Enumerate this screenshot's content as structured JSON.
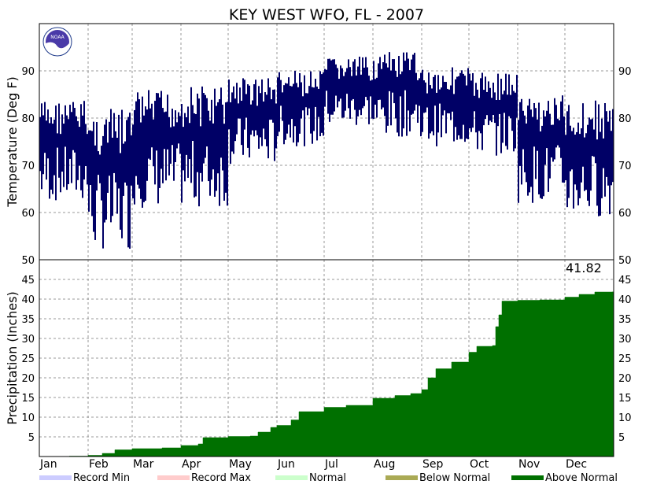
{
  "chart_data": {
    "title": "KEY WEST WFO, FL - 2007",
    "temperature": {
      "type": "bar",
      "ylabel": "Temperature (Deg F)",
      "ylim": [
        50,
        100
      ],
      "yticks": [
        60,
        70,
        80,
        90
      ],
      "grid": true,
      "series_color": "#000066",
      "monthly_ranges": [
        {
          "month": "Jan",
          "low": 62,
          "high": 84
        },
        {
          "month": "Feb",
          "low": 52,
          "high": 82
        },
        {
          "month": "Mar",
          "low": 61,
          "high": 86
        },
        {
          "month": "Apr",
          "low": 61,
          "high": 87
        },
        {
          "month": "May",
          "low": 70,
          "high": 89
        },
        {
          "month": "Jun",
          "low": 74,
          "high": 90
        },
        {
          "month": "Jul",
          "low": 78,
          "high": 93
        },
        {
          "month": "Aug",
          "low": 76,
          "high": 94
        },
        {
          "month": "Sep",
          "low": 74,
          "high": 91
        },
        {
          "month": "Oct",
          "low": 72,
          "high": 90
        },
        {
          "month": "Nov",
          "low": 62,
          "high": 85
        },
        {
          "month": "Dec",
          "low": 59,
          "high": 84
        }
      ]
    },
    "precipitation": {
      "type": "area",
      "ylabel": "Precipitation (Inches)",
      "ylim": [
        0,
        50
      ],
      "yticks": [
        5,
        10,
        15,
        20,
        25,
        30,
        35,
        40,
        45,
        50
      ],
      "grid": true,
      "total_label": "41.82",
      "fill_color": "#007000",
      "cumulative": [
        {
          "date": "2007-01-01",
          "value": 0.0
        },
        {
          "date": "2007-01-20",
          "value": 0.1
        },
        {
          "date": "2007-02-01",
          "value": 0.3
        },
        {
          "date": "2007-02-10",
          "value": 0.8
        },
        {
          "date": "2007-02-18",
          "value": 1.7
        },
        {
          "date": "2007-03-01",
          "value": 2.0
        },
        {
          "date": "2007-03-20",
          "value": 2.2
        },
        {
          "date": "2007-04-01",
          "value": 2.8
        },
        {
          "date": "2007-04-12",
          "value": 3.2
        },
        {
          "date": "2007-04-15",
          "value": 4.8
        },
        {
          "date": "2007-05-01",
          "value": 5.1
        },
        {
          "date": "2007-05-15",
          "value": 5.2
        },
        {
          "date": "2007-05-20",
          "value": 6.2
        },
        {
          "date": "2007-05-28",
          "value": 7.4
        },
        {
          "date": "2007-06-01",
          "value": 7.9
        },
        {
          "date": "2007-06-10",
          "value": 9.3
        },
        {
          "date": "2007-06-15",
          "value": 11.4
        },
        {
          "date": "2007-07-01",
          "value": 12.5
        },
        {
          "date": "2007-07-15",
          "value": 13.0
        },
        {
          "date": "2007-08-01",
          "value": 14.8
        },
        {
          "date": "2007-08-15",
          "value": 15.5
        },
        {
          "date": "2007-08-25",
          "value": 16.0
        },
        {
          "date": "2007-09-01",
          "value": 17.0
        },
        {
          "date": "2007-09-05",
          "value": 20.0
        },
        {
          "date": "2007-09-10",
          "value": 22.3
        },
        {
          "date": "2007-09-20",
          "value": 24.0
        },
        {
          "date": "2007-10-01",
          "value": 26.5
        },
        {
          "date": "2007-10-06",
          "value": 28.0
        },
        {
          "date": "2007-10-16",
          "value": 28.2
        },
        {
          "date": "2007-10-18",
          "value": 33.0
        },
        {
          "date": "2007-10-20",
          "value": 36.0
        },
        {
          "date": "2007-10-22",
          "value": 39.5
        },
        {
          "date": "2007-11-01",
          "value": 39.7
        },
        {
          "date": "2007-11-15",
          "value": 39.8
        },
        {
          "date": "2007-12-01",
          "value": 40.5
        },
        {
          "date": "2007-12-10",
          "value": 41.2
        },
        {
          "date": "2007-12-20",
          "value": 41.8
        },
        {
          "date": "2007-12-31",
          "value": 41.82
        }
      ]
    },
    "x_categories": [
      "Jan",
      "Feb",
      "Mar",
      "Apr",
      "May",
      "Jun",
      "Jul",
      "Aug",
      "Sep",
      "Oct",
      "Nov",
      "Dec"
    ],
    "legend": {
      "placement": "bottom",
      "items": [
        {
          "label": "Record Min",
          "color": "#ccccff"
        },
        {
          "label": "Record Max",
          "color": "#ffcccc"
        },
        {
          "label": "Normal",
          "color": "#ccffcc"
        },
        {
          "label": "Below Normal",
          "color": "#aaaa55"
        },
        {
          "label": "Above Normal",
          "color": "#007000"
        }
      ]
    }
  },
  "logo": {
    "text": "NOAA"
  }
}
